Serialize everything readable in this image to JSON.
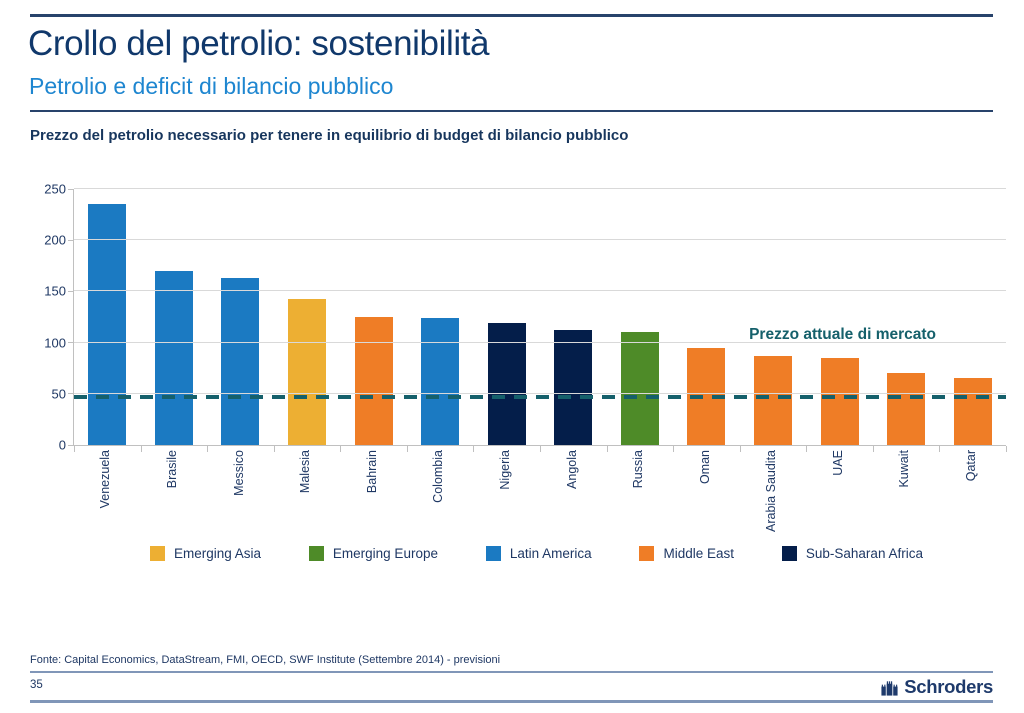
{
  "slide": {
    "title": "Crollo del petrolio: sostenibilità",
    "subtitle": "Petrolio e deficit di bilancio pubblico",
    "chart_heading": "Prezzo del petrolio necessario per tenere in equilibrio di budget di bilancio pubblico",
    "source": "Fonte: Capital Economics, DataStream, FMI, OECD, SWF Institute (Settembre 2014) - previsioni",
    "page_number": "35",
    "brand": "Schroders"
  },
  "colors": {
    "title_text": "#10386B",
    "subtitle_text": "#1E86D0",
    "axis_text": "#1F3864",
    "gridline": "#D9D9D9",
    "axis_line": "#C0C0C0",
    "market_line": "#15606B",
    "regions": {
      "Emerging Asia": "#EDAF33",
      "Emerging Europe": "#4E8B28",
      "Latin America": "#1B7AC2",
      "Middle East": "#EF7D26",
      "Sub-Saharan Africa": "#041E4A"
    }
  },
  "chart_data": {
    "type": "bar",
    "title": "Prezzo del petrolio necessario per tenere in equilibrio di budget di bilancio pubblico",
    "categories": [
      "Venezuela",
      "Brasile",
      "Messico",
      "Malesia",
      "Bahrain",
      "Colombia",
      "Nigeria",
      "Angola",
      "Russia",
      "Oman",
      "Arabia Saudita",
      "UAE",
      "Kuwait",
      "Qatar"
    ],
    "values": [
      235,
      170,
      163,
      143,
      125,
      124,
      119,
      112,
      110,
      95,
      87,
      85,
      70,
      65
    ],
    "regions": [
      "Latin America",
      "Latin America",
      "Latin America",
      "Emerging Asia",
      "Middle East",
      "Latin America",
      "Sub-Saharan Africa",
      "Sub-Saharan Africa",
      "Emerging Europe",
      "Middle East",
      "Middle East",
      "Middle East",
      "Middle East",
      "Middle East"
    ],
    "ylim": [
      0,
      250
    ],
    "yticks": [
      0,
      50,
      100,
      150,
      200,
      250
    ],
    "grid": true,
    "reference_line": {
      "value": 47,
      "label": "Prezzo attuale di mercato"
    },
    "legend": [
      "Emerging Asia",
      "Emerging Europe",
      "Latin America",
      "Middle East",
      "Sub-Saharan Africa"
    ],
    "legend_position": "bottom"
  }
}
